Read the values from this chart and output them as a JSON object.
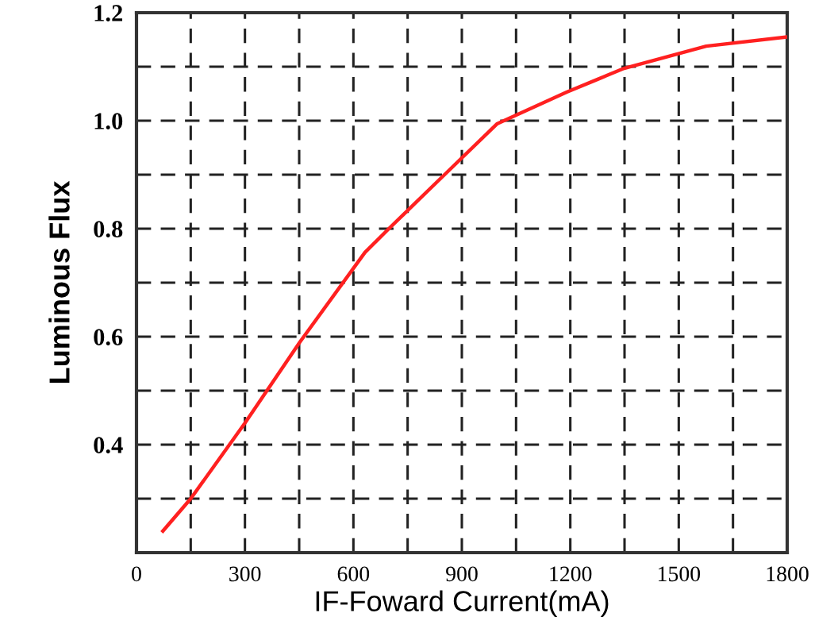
{
  "chart_data": {
    "type": "line",
    "xlabel": "IF-Foward Current(mA)",
    "ylabel": "Luminous Flux",
    "x": [
      73,
      150,
      300,
      452,
      632,
      698,
      852,
      997,
      1190,
      1277,
      1349,
      1576,
      1800
    ],
    "series": [
      {
        "color": "#ff2020",
        "values": [
          0.24,
          0.3,
          0.44,
          0.59,
          0.756,
          0.8,
          0.9,
          0.994,
          1.053,
          1.077,
          1.097,
          1.138,
          1.155
        ]
      }
    ],
    "xlim": [
      0,
      1800
    ],
    "xticks": [
      0,
      {
        "value": 150,
        "label": null
      },
      300,
      {
        "value": 450,
        "label": null
      },
      600,
      {
        "value": 750,
        "label": null
      },
      900,
      {
        "value": 1050,
        "label": null
      },
      1200,
      {
        "value": 1350,
        "label": null
      },
      1500,
      {
        "value": 1650,
        "label": null
      },
      1800
    ],
    "ylim": [
      0.2,
      1.2
    ],
    "yticks": [
      {
        "value": 0.3,
        "label": null
      },
      0.4,
      {
        "value": 0.5,
        "label": null
      },
      0.6,
      {
        "value": 0.7,
        "label": null
      },
      0.8,
      {
        "value": 0.9,
        "label": null
      },
      {
        "value": 1.0,
        "label": "1.0"
      },
      {
        "value": 1.1,
        "label": null
      },
      1.2
    ],
    "grid": true,
    "line_style": "solid",
    "marker": "none",
    "legend": false
  }
}
